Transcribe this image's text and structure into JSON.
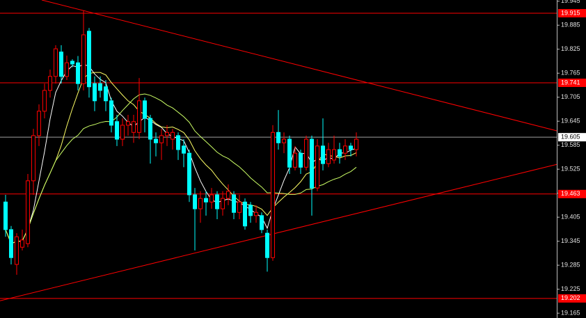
{
  "chart_data": {
    "type": "candlestick",
    "open": [
      19.443,
      19.374,
      19.287,
      19.33,
      19.339,
      19.496,
      19.609,
      19.67,
      19.722,
      19.757,
      19.818,
      19.757,
      19.795,
      19.791,
      19.739,
      19.87,
      19.739,
      19.739,
      19.731,
      19.696,
      19.644,
      19.6,
      19.635,
      19.617,
      19.617,
      19.696,
      19.652,
      19.6,
      19.591,
      19.609,
      19.6,
      19.609,
      19.583,
      19.565,
      19.461,
      19.426,
      19.452,
      19.443,
      19.461,
      19.426,
      19.452,
      19.461,
      19.417,
      19.443,
      19.435,
      19.409,
      19.409,
      19.365,
      19.304,
      19.617,
      19.591,
      19.6,
      19.53,
      19.565,
      19.53,
      19.6,
      19.478,
      19.583,
      19.539,
      19.548,
      19.574,
      19.565,
      19.583,
      19.574
    ],
    "high": [
      19.461,
      19.383,
      19.365,
      19.374,
      19.513,
      19.626,
      19.687,
      19.739,
      19.774,
      19.835,
      19.835,
      19.809,
      19.8,
      19.808,
      19.922,
      19.878,
      19.757,
      19.757,
      19.748,
      19.704,
      19.661,
      19.652,
      19.661,
      19.661,
      19.753,
      19.704,
      19.661,
      19.617,
      19.626,
      19.635,
      19.626,
      19.617,
      19.6,
      19.574,
      19.478,
      19.47,
      19.47,
      19.478,
      19.47,
      19.47,
      19.487,
      19.47,
      19.461,
      19.452,
      19.443,
      19.435,
      19.417,
      19.374,
      19.635,
      19.673,
      19.617,
      19.609,
      19.583,
      19.574,
      19.609,
      19.609,
      19.6,
      19.652,
      19.591,
      19.609,
      19.591,
      19.6,
      19.591,
      19.617
    ],
    "low": [
      19.356,
      19.287,
      19.261,
      19.322,
      19.33,
      19.461,
      19.583,
      19.652,
      19.704,
      19.739,
      19.739,
      19.748,
      19.78,
      19.722,
      19.722,
      19.704,
      19.67,
      19.704,
      19.67,
      19.617,
      19.583,
      19.583,
      19.609,
      19.591,
      19.6,
      19.617,
      19.539,
      19.557,
      19.548,
      19.583,
      19.574,
      19.548,
      19.53,
      19.443,
      19.322,
      19.391,
      19.409,
      19.426,
      19.4,
      19.409,
      19.435,
      19.4,
      19.4,
      19.374,
      19.391,
      19.391,
      19.365,
      19.269,
      19.296,
      19.574,
      19.565,
      19.513,
      19.522,
      19.513,
      19.522,
      19.409,
      19.47,
      19.522,
      19.53,
      19.539,
      19.539,
      19.548,
      19.557,
      19.557
    ],
    "close": [
      19.374,
      19.304,
      19.356,
      19.348,
      19.496,
      19.609,
      19.67,
      19.722,
      19.757,
      19.826,
      19.757,
      19.791,
      19.788,
      19.739,
      19.861,
      19.731,
      19.696,
      19.722,
      19.696,
      19.635,
      19.6,
      19.635,
      19.644,
      19.644,
      19.696,
      19.652,
      19.6,
      19.591,
      19.609,
      19.617,
      19.617,
      19.574,
      19.565,
      19.461,
      19.426,
      19.452,
      19.443,
      19.461,
      19.426,
      19.452,
      19.47,
      19.417,
      19.443,
      19.383,
      19.409,
      19.417,
      19.374,
      19.304,
      19.617,
      19.591,
      19.6,
      19.53,
      19.565,
      19.53,
      19.6,
      19.478,
      19.583,
      19.539,
      19.574,
      19.574,
      19.557,
      19.583,
      19.574,
      19.6
    ],
    "up_color": "#ff0000",
    "down_color": "#00ffff",
    "moving_averages": [
      {
        "period": 5,
        "color": "#ffffff"
      },
      {
        "period": 10,
        "color": "#ffff66"
      },
      {
        "period": 20,
        "color": "#ccff66"
      }
    ],
    "levels": [
      19.915,
      19.741,
      19.463,
      19.202
    ],
    "level_color": "#ff0000",
    "current_price": 19.605,
    "trend_lines": [
      {
        "points": [
          [
            6.5,
            19.948
          ],
          [
            99,
            19.621
          ]
        ]
      },
      {
        "points": [
          [
            -1,
            19.196
          ],
          [
            99,
            19.537
          ]
        ]
      }
    ],
    "ylim": [
      19.153,
      19.948
    ],
    "yticks": [
      19.945,
      19.885,
      19.825,
      19.765,
      19.705,
      19.645,
      19.585,
      19.525,
      19.465,
      19.405,
      19.345,
      19.285,
      19.225,
      19.165
    ]
  }
}
